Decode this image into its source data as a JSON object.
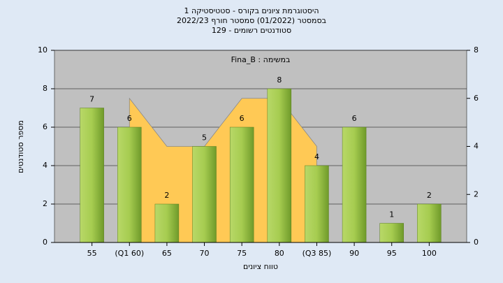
{
  "chart_data": {
    "type": "bar",
    "title": "היסטוגרמת ציונים בקורס - סטטיסטיקה 1",
    "subtitle": "בסמסטר  (01/2022)  סמסטר חורף 2022/23",
    "subtitle2": "129 - סטודנטים רשומים",
    "annotation": "Fina_B : במשימה",
    "x_label": "טווח ציונים",
    "y_label": "מספר סטודנטים",
    "categories": [
      "55",
      "(Q1 60)",
      "65",
      "70",
      "75",
      "80",
      "(Q3 85)",
      "90",
      "95",
      "100"
    ],
    "series": [
      {
        "type": "bar",
        "color": "#9cc64a",
        "values": [
          7,
          6,
          2,
          5,
          6,
          8,
          4,
          6,
          1,
          2
        ]
      },
      {
        "type": "area",
        "axis": "y2",
        "color": "#ffc955",
        "values": [
          null,
          6,
          4,
          4,
          6,
          6,
          4,
          null,
          null,
          null
        ]
      }
    ],
    "ylim": [
      0,
      10
    ],
    "yticks": [
      0,
      2,
      4,
      6,
      8,
      10
    ],
    "y2lim": [
      0,
      8
    ],
    "y2ticks": [
      0,
      2,
      4,
      6,
      8
    ],
    "grid": true
  }
}
